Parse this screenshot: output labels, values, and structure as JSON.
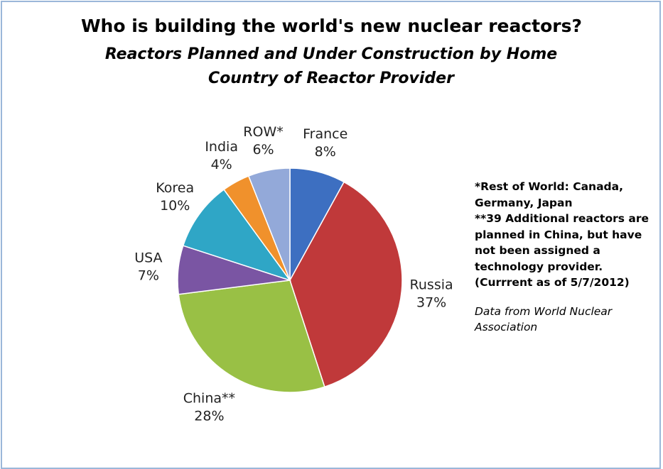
{
  "chart_data": {
    "type": "pie",
    "title": "Who is building the world's new nuclear reactors?",
    "subtitle": "Reactors Planned and Under Construction by Home Country of Reactor Provider",
    "categories": [
      "France",
      "Russia",
      "China**",
      "USA",
      "Korea",
      "India",
      "ROW*"
    ],
    "values": [
      8,
      37,
      28,
      7,
      10,
      4,
      6
    ],
    "value_labels": [
      "8%",
      "37%",
      "28%",
      "7%",
      "10%",
      "4%",
      "6%"
    ],
    "colors": [
      "#3d6fc1",
      "#c0393a",
      "#99c045",
      "#7a55a3",
      "#2fa6c6",
      "#f0912c",
      "#93a9d9"
    ],
    "annotations": [
      "*Rest of World: Canada, Germany, Japan",
      "**39 Additional reactors are planned in China, but have not been assigned a technology provider. (Currrent as of 5/7/2012)",
      "Data from World Nuclear Association"
    ]
  }
}
